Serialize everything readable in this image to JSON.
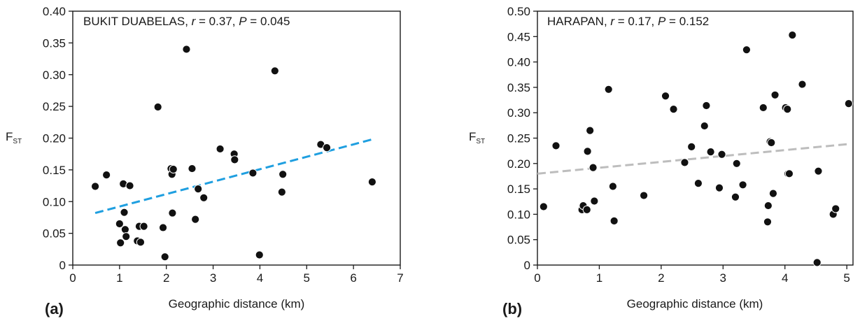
{
  "chart_data": [
    {
      "type": "scatter",
      "panel_label": "(a)",
      "annotation": {
        "site": "BUKIT DUABELAS",
        "r_label": "r",
        "r_value": " = 0.37, ",
        "p_label": "P",
        "p_value": " = 0.045"
      },
      "xlabel": "Geographic distance (km)",
      "ylabel_main": "F",
      "ylabel_sub": "ST",
      "xlim": [
        0,
        7
      ],
      "ylim": [
        0,
        0.4
      ],
      "xticks": [
        "0",
        "1",
        "2",
        "3",
        "4",
        "5",
        "6",
        "7"
      ],
      "yticks": [
        "0",
        "0.05",
        "0.10",
        "0.15",
        "0.20",
        "0.25",
        "0.30",
        "0.35",
        "0.40"
      ],
      "trend": {
        "x": [
          0.48,
          6.4
        ],
        "y": [
          0.082,
          0.198
        ],
        "color": "#1f9fe0"
      },
      "series": [
        {
          "points": [
            [
              0.48,
              0.124
            ],
            [
              0.72,
              0.142
            ],
            [
              1.0,
              0.065
            ],
            [
              1.02,
              0.035
            ],
            [
              1.08,
              0.128
            ],
            [
              1.1,
              0.083
            ],
            [
              1.12,
              0.056
            ],
            [
              1.14,
              0.045
            ],
            [
              1.22,
              0.125
            ],
            [
              1.38,
              0.038
            ],
            [
              1.42,
              0.061
            ],
            [
              1.45,
              0.036
            ],
            [
              1.52,
              0.061
            ],
            [
              1.82,
              0.249
            ],
            [
              1.93,
              0.059
            ],
            [
              1.97,
              0.013
            ],
            [
              2.1,
              0.152
            ],
            [
              2.12,
              0.143
            ],
            [
              2.13,
              0.082
            ],
            [
              2.15,
              0.151
            ],
            [
              2.43,
              0.34
            ],
            [
              2.55,
              0.152
            ],
            [
              2.62,
              0.072
            ],
            [
              2.68,
              0.12
            ],
            [
              2.8,
              0.106
            ],
            [
              3.15,
              0.183
            ],
            [
              3.45,
              0.175
            ],
            [
              3.46,
              0.166
            ],
            [
              3.85,
              0.145
            ],
            [
              3.99,
              0.016
            ],
            [
              4.32,
              0.306
            ],
            [
              4.47,
              0.115
            ],
            [
              4.49,
              0.143
            ],
            [
              5.3,
              0.19
            ],
            [
              5.43,
              0.185
            ],
            [
              6.4,
              0.131
            ]
          ]
        }
      ]
    },
    {
      "type": "scatter",
      "panel_label": "(b)",
      "annotation": {
        "site": "HARAPAN",
        "r_label": "r",
        "r_value": " = 0.17, ",
        "p_label": "P",
        "p_value": " = 0.152"
      },
      "xlabel": "Geographic distance (km)",
      "ylabel_main": "F",
      "ylabel_sub": "ST",
      "xlim": [
        0,
        5.1
      ],
      "ylim": [
        0,
        0.5
      ],
      "xticks": [
        "0",
        "1",
        "2",
        "3",
        "4",
        "5"
      ],
      "yticks": [
        "0",
        "0.05",
        "0.10",
        "0.15",
        "0.20",
        "0.25",
        "0.30",
        "0.35",
        "0.40",
        "0.45",
        "0.50"
      ],
      "trend": {
        "x": [
          0,
          5
        ],
        "y": [
          0.18,
          0.238
        ],
        "color": "#bdbdbd"
      },
      "series": [
        {
          "points": [
            [
              0.1,
              0.115
            ],
            [
              0.3,
              0.235
            ],
            [
              0.72,
              0.109
            ],
            [
              0.74,
              0.117
            ],
            [
              0.8,
              0.109
            ],
            [
              0.81,
              0.224
            ],
            [
              0.85,
              0.265
            ],
            [
              0.9,
              0.192
            ],
            [
              0.92,
              0.126
            ],
            [
              1.15,
              0.346
            ],
            [
              1.22,
              0.155
            ],
            [
              1.24,
              0.087
            ],
            [
              1.72,
              0.137
            ],
            [
              2.07,
              0.333
            ],
            [
              2.2,
              0.307
            ],
            [
              2.38,
              0.202
            ],
            [
              2.49,
              0.233
            ],
            [
              2.6,
              0.161
            ],
            [
              2.7,
              0.274
            ],
            [
              2.73,
              0.314
            ],
            [
              2.8,
              0.223
            ],
            [
              2.94,
              0.152
            ],
            [
              2.98,
              0.218
            ],
            [
              3.2,
              0.134
            ],
            [
              3.22,
              0.2
            ],
            [
              3.32,
              0.158
            ],
            [
              3.38,
              0.424
            ],
            [
              3.65,
              0.31
            ],
            [
              3.72,
              0.085
            ],
            [
              3.73,
              0.117
            ],
            [
              3.76,
              0.243
            ],
            [
              3.78,
              0.241
            ],
            [
              3.81,
              0.141
            ],
            [
              3.84,
              0.335
            ],
            [
              4.01,
              0.31
            ],
            [
              4.04,
              0.307
            ],
            [
              4.05,
              0.18
            ],
            [
              4.07,
              0.18
            ],
            [
              4.12,
              0.453
            ],
            [
              4.28,
              0.356
            ],
            [
              4.52,
              0.005
            ],
            [
              4.54,
              0.185
            ],
            [
              4.78,
              0.1
            ],
            [
              4.82,
              0.111
            ],
            [
              5.03,
              0.318
            ]
          ]
        }
      ]
    }
  ]
}
